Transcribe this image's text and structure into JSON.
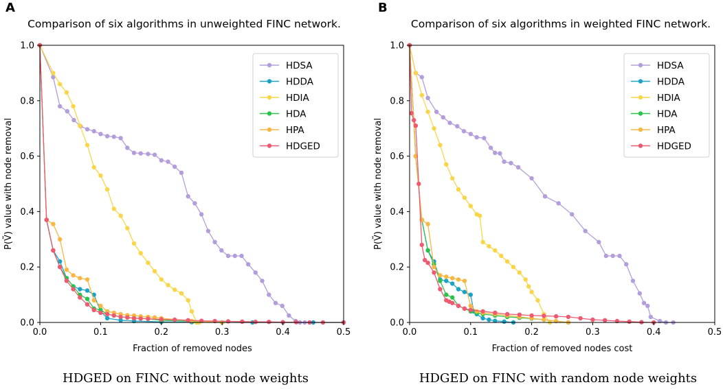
{
  "chart_data": [
    {
      "panel_letter": "A",
      "type": "line",
      "title": "Comparison of six algorithms in unweighted FINC network.",
      "xlabel": "Fraction of removed nodes",
      "ylabel": "P(Ṽ) value with node removal",
      "caption": "HDGED on FINC without node weights",
      "xlim": [
        0,
        0.5
      ],
      "ylim": [
        0,
        1.0
      ],
      "xticks": [
        "0.0",
        "0.1",
        "0.2",
        "0.3",
        "0.4",
        "0.5"
      ],
      "yticks": [
        "0.0",
        "0.2",
        "0.4",
        "0.6",
        "0.8",
        "1.0"
      ],
      "legend_position": "top-right",
      "series": [
        {
          "name": "HDSA",
          "color": "#b39ddb",
          "x": [
            0,
            0.022,
            0.033,
            0.045,
            0.056,
            0.067,
            0.078,
            0.089,
            0.1,
            0.111,
            0.122,
            0.133,
            0.144,
            0.155,
            0.166,
            0.178,
            0.189,
            0.2,
            0.211,
            0.222,
            0.233,
            0.244,
            0.255,
            0.266,
            0.277,
            0.288,
            0.299,
            0.31,
            0.321,
            0.332,
            0.343,
            0.355,
            0.366,
            0.377,
            0.388,
            0.399,
            0.41,
            0.421,
            0.428,
            0.436
          ],
          "y": [
            1.0,
            0.885,
            0.78,
            0.762,
            0.73,
            0.708,
            0.697,
            0.69,
            0.68,
            0.672,
            0.67,
            0.665,
            0.63,
            0.612,
            0.61,
            0.608,
            0.605,
            0.585,
            0.58,
            0.562,
            0.54,
            0.455,
            0.43,
            0.39,
            0.33,
            0.29,
            0.26,
            0.24,
            0.24,
            0.24,
            0.21,
            0.18,
            0.15,
            0.1,
            0.07,
            0.06,
            0.025,
            0.005,
            0,
            0
          ]
        },
        {
          "name": "HDDA",
          "color": "#1ba3c6",
          "x": [
            0,
            0.011,
            0.022,
            0.033,
            0.044,
            0.055,
            0.066,
            0.078,
            0.089,
            0.1,
            0.111,
            0.133,
            0.155,
            0.2,
            0.25,
            0.3,
            0.35,
            0.4,
            0.45,
            0.5
          ],
          "y": [
            1.0,
            0.37,
            0.26,
            0.22,
            0.16,
            0.13,
            0.12,
            0.115,
            0.1,
            0.04,
            0.015,
            0.008,
            0.005,
            0.002,
            0.001,
            0,
            0,
            0,
            0,
            0
          ]
        },
        {
          "name": "HDIA",
          "color": "#f9d649",
          "x": [
            0,
            0.022,
            0.033,
            0.044,
            0.055,
            0.066,
            0.078,
            0.089,
            0.1,
            0.111,
            0.122,
            0.133,
            0.144,
            0.155,
            0.166,
            0.178,
            0.189,
            0.2,
            0.211,
            0.222,
            0.233,
            0.244,
            0.25,
            0.258,
            0.262
          ],
          "y": [
            1.0,
            0.9,
            0.86,
            0.83,
            0.78,
            0.71,
            0.64,
            0.56,
            0.53,
            0.48,
            0.41,
            0.385,
            0.34,
            0.285,
            0.25,
            0.215,
            0.185,
            0.155,
            0.135,
            0.118,
            0.105,
            0.08,
            0.04,
            0,
            0
          ]
        },
        {
          "name": "HDA",
          "color": "#2bc24b",
          "x": [
            0,
            0.011,
            0.022,
            0.033,
            0.044,
            0.055,
            0.066,
            0.078,
            0.089,
            0.1,
            0.111,
            0.122,
            0.133,
            0.144,
            0.155,
            0.166,
            0.178,
            0.2,
            0.25,
            0.3
          ],
          "y": [
            1.0,
            0.37,
            0.26,
            0.2,
            0.16,
            0.13,
            0.1,
            0.085,
            0.05,
            0.045,
            0.03,
            0.025,
            0.02,
            0.018,
            0.015,
            0.015,
            0.013,
            0.008,
            0.004,
            0
          ]
        },
        {
          "name": "HPA",
          "color": "#f7b742",
          "x": [
            0,
            0.011,
            0.022,
            0.033,
            0.044,
            0.055,
            0.066,
            0.078,
            0.089,
            0.1,
            0.111,
            0.122,
            0.133,
            0.144,
            0.155,
            0.166,
            0.178,
            0.189,
            0.2,
            0.25,
            0.3
          ],
          "y": [
            1.0,
            0.37,
            0.355,
            0.3,
            0.19,
            0.17,
            0.16,
            0.155,
            0.08,
            0.06,
            0.04,
            0.035,
            0.03,
            0.026,
            0.025,
            0.022,
            0.02,
            0.018,
            0.015,
            0.005,
            0
          ]
        },
        {
          "name": "HDGED",
          "color": "#ee5a6f",
          "x": [
            0,
            0.011,
            0.022,
            0.033,
            0.044,
            0.055,
            0.066,
            0.078,
            0.089,
            0.1,
            0.111,
            0.122,
            0.133,
            0.144,
            0.155,
            0.166,
            0.178,
            0.2,
            0.222,
            0.244,
            0.266,
            0.288,
            0.31,
            0.333,
            0.355,
            0.377,
            0.4,
            0.422,
            0.444,
            0.466,
            0.5
          ],
          "y": [
            1.0,
            0.37,
            0.26,
            0.2,
            0.15,
            0.12,
            0.09,
            0.065,
            0.045,
            0.035,
            0.03,
            0.025,
            0.02,
            0.018,
            0.015,
            0.014,
            0.013,
            0.011,
            0.01,
            0.008,
            0.006,
            0.005,
            0.004,
            0.003,
            0.002,
            0.002,
            0.001,
            0.001,
            0,
            0,
            0
          ]
        }
      ]
    },
    {
      "panel_letter": "B",
      "type": "line",
      "title": "Comparison of six algorithms in weighted FINC network.",
      "xlabel": "Fraction of removed nodes cost",
      "ylabel": "P(Ṽ) value with node removal",
      "caption": "HDGED on FINC with random node weights",
      "xlim": [
        0,
        0.5
      ],
      "ylim": [
        0,
        1.0
      ],
      "xticks": [
        "0.0",
        "0.1",
        "0.2",
        "0.3",
        "0.4",
        "0.5"
      ],
      "yticks": [
        "0.0",
        "0.2",
        "0.4",
        "0.6",
        "0.8",
        "1.0"
      ],
      "legend_position": "top-right",
      "series": [
        {
          "name": "HDSA",
          "color": "#b39ddb",
          "x": [
            0,
            0.01,
            0.02,
            0.03,
            0.044,
            0.055,
            0.066,
            0.078,
            0.089,
            0.1,
            0.11,
            0.122,
            0.133,
            0.14,
            0.148,
            0.155,
            0.166,
            0.178,
            0.2,
            0.222,
            0.244,
            0.266,
            0.288,
            0.31,
            0.322,
            0.333,
            0.344,
            0.355,
            0.366,
            0.377,
            0.384,
            0.39,
            0.395,
            0.41,
            0.42,
            0.432
          ],
          "y": [
            1.0,
            0.9,
            0.885,
            0.81,
            0.76,
            0.74,
            0.72,
            0.708,
            0.69,
            0.68,
            0.668,
            0.665,
            0.63,
            0.612,
            0.61,
            0.58,
            0.575,
            0.56,
            0.52,
            0.455,
            0.43,
            0.39,
            0.33,
            0.29,
            0.24,
            0.24,
            0.24,
            0.21,
            0.15,
            0.105,
            0.07,
            0.06,
            0.02,
            0.005,
            0,
            0
          ]
        },
        {
          "name": "HDDA",
          "color": "#1ba3c6",
          "x": [
            0,
            0.01,
            0.02,
            0.03,
            0.04,
            0.05,
            0.06,
            0.07,
            0.08,
            0.09,
            0.1,
            0.105,
            0.11,
            0.12,
            0.13,
            0.14,
            0.155,
            0.17
          ],
          "y": [
            1.0,
            0.6,
            0.37,
            0.26,
            0.22,
            0.155,
            0.15,
            0.14,
            0.12,
            0.11,
            0.1,
            0.04,
            0.03,
            0.015,
            0.01,
            0.006,
            0.003,
            0
          ]
        },
        {
          "name": "HDIA",
          "color": "#f9d649",
          "x": [
            0,
            0.01,
            0.02,
            0.03,
            0.04,
            0.05,
            0.06,
            0.07,
            0.08,
            0.09,
            0.1,
            0.11,
            0.115,
            0.12,
            0.13,
            0.14,
            0.15,
            0.16,
            0.17,
            0.18,
            0.19,
            0.195,
            0.2,
            0.21,
            0.22,
            0.23
          ],
          "y": [
            1.0,
            0.9,
            0.82,
            0.76,
            0.7,
            0.64,
            0.57,
            0.52,
            0.48,
            0.45,
            0.42,
            0.39,
            0.385,
            0.29,
            0.275,
            0.26,
            0.24,
            0.22,
            0.2,
            0.18,
            0.155,
            0.13,
            0.11,
            0.08,
            0.03,
            0
          ]
        },
        {
          "name": "HDA",
          "color": "#2bc24b",
          "x": [
            0,
            0.01,
            0.02,
            0.03,
            0.04,
            0.05,
            0.06,
            0.07,
            0.08,
            0.09,
            0.1,
            0.11,
            0.12,
            0.14,
            0.16,
            0.18,
            0.2,
            0.22,
            0.24,
            0.26
          ],
          "y": [
            1.0,
            0.6,
            0.37,
            0.26,
            0.21,
            0.15,
            0.1,
            0.09,
            0.06,
            0.05,
            0.04,
            0.035,
            0.03,
            0.025,
            0.02,
            0.017,
            0.014,
            0.01,
            0.005,
            0
          ]
        },
        {
          "name": "HPA",
          "color": "#f7b742",
          "x": [
            0,
            0.01,
            0.02,
            0.03,
            0.04,
            0.05,
            0.06,
            0.07,
            0.08,
            0.09,
            0.1,
            0.11,
            0.12,
            0.14,
            0.16,
            0.18,
            0.2,
            0.22,
            0.24,
            0.26
          ],
          "y": [
            1.0,
            0.6,
            0.37,
            0.355,
            0.2,
            0.17,
            0.165,
            0.16,
            0.155,
            0.15,
            0.06,
            0.04,
            0.035,
            0.03,
            0.025,
            0.02,
            0.015,
            0.01,
            0.005,
            0
          ]
        },
        {
          "name": "HDGED",
          "color": "#ee5a6f",
          "x": [
            0,
            0.003,
            0.007,
            0.01,
            0.015,
            0.02,
            0.025,
            0.03,
            0.04,
            0.05,
            0.06,
            0.065,
            0.07,
            0.08,
            0.09,
            0.1,
            0.12,
            0.14,
            0.16,
            0.18,
            0.2,
            0.22,
            0.24,
            0.26,
            0.28,
            0.3,
            0.32,
            0.34,
            0.36,
            0.38,
            0.4
          ],
          "y": [
            1.0,
            0.755,
            0.73,
            0.71,
            0.5,
            0.28,
            0.225,
            0.215,
            0.18,
            0.12,
            0.08,
            0.075,
            0.07,
            0.06,
            0.05,
            0.045,
            0.04,
            0.035,
            0.03,
            0.028,
            0.025,
            0.024,
            0.022,
            0.02,
            0.015,
            0.01,
            0.008,
            0.005,
            0.003,
            0.001,
            0
          ]
        }
      ]
    }
  ]
}
